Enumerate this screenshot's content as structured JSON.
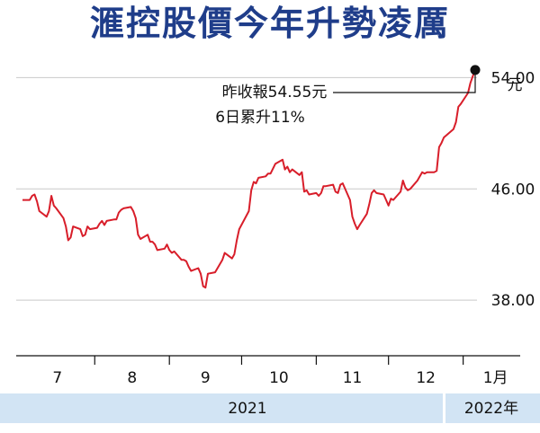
{
  "title": "滙控股價今年升勢凌厲",
  "chart_data": {
    "type": "line",
    "unit": "元",
    "ylim": [
      34,
      57
    ],
    "yticks": [
      "54.00",
      "46.00",
      "38.00"
    ],
    "ytick_values": [
      54,
      46,
      38
    ],
    "grid": true,
    "month_labels": [
      "7",
      "8",
      "9",
      "10",
      "11",
      "12",
      "1月"
    ],
    "year_labels": [
      "2021",
      "2022年"
    ],
    "annotation_lines": [
      "昨收報54.55元",
      "6日累升11%"
    ],
    "series": [
      {
        "color": "#d81e2a",
        "points": [
          [
            "2021-07-02",
            45.2
          ],
          [
            "2021-07-05",
            45.2
          ],
          [
            "2021-07-06",
            45.5
          ],
          [
            "2021-07-07",
            45.6
          ],
          [
            "2021-07-08",
            45.1
          ],
          [
            "2021-07-09",
            44.4
          ],
          [
            "2021-07-12",
            44.0
          ],
          [
            "2021-07-13",
            44.4
          ],
          [
            "2021-07-14",
            45.5
          ],
          [
            "2021-07-15",
            44.8
          ],
          [
            "2021-07-16",
            44.6
          ],
          [
            "2021-07-19",
            43.9
          ],
          [
            "2021-07-20",
            43.3
          ],
          [
            "2021-07-21",
            42.3
          ],
          [
            "2021-07-22",
            42.5
          ],
          [
            "2021-07-23",
            43.3
          ],
          [
            "2021-07-26",
            43.1
          ],
          [
            "2021-07-27",
            42.6
          ],
          [
            "2021-07-28",
            42.7
          ],
          [
            "2021-07-29",
            43.3
          ],
          [
            "2021-07-30",
            43.1
          ],
          [
            "2021-08-02",
            43.2
          ],
          [
            "2021-08-03",
            43.5
          ],
          [
            "2021-08-04",
            43.7
          ],
          [
            "2021-08-05",
            43.4
          ],
          [
            "2021-08-06",
            43.7
          ],
          [
            "2021-08-09",
            43.8
          ],
          [
            "2021-08-10",
            43.8
          ],
          [
            "2021-08-11",
            44.3
          ],
          [
            "2021-08-12",
            44.5
          ],
          [
            "2021-08-13",
            44.6
          ],
          [
            "2021-08-16",
            44.7
          ],
          [
            "2021-08-17",
            44.4
          ],
          [
            "2021-08-18",
            43.9
          ],
          [
            "2021-08-19",
            42.7
          ],
          [
            "2021-08-20",
            42.4
          ],
          [
            "2021-08-23",
            42.7
          ],
          [
            "2021-08-24",
            42.2
          ],
          [
            "2021-08-25",
            42.2
          ],
          [
            "2021-08-26",
            42.0
          ],
          [
            "2021-08-27",
            41.6
          ],
          [
            "2021-08-30",
            41.7
          ],
          [
            "2021-08-31",
            42.0
          ],
          [
            "2021-09-01",
            41.6
          ],
          [
            "2021-09-02",
            41.4
          ],
          [
            "2021-09-03",
            41.5
          ],
          [
            "2021-09-06",
            40.9
          ],
          [
            "2021-09-07",
            40.9
          ],
          [
            "2021-09-08",
            40.8
          ],
          [
            "2021-09-09",
            40.4
          ],
          [
            "2021-09-10",
            40.1
          ],
          [
            "2021-09-13",
            40.3
          ],
          [
            "2021-09-14",
            39.9
          ],
          [
            "2021-09-15",
            39.0
          ],
          [
            "2021-09-16",
            38.9
          ],
          [
            "2021-09-17",
            39.9
          ],
          [
            "2021-09-20",
            40.0
          ],
          [
            "2021-09-21",
            40.3
          ],
          [
            "2021-09-23",
            40.9
          ],
          [
            "2021-09-24",
            41.4
          ],
          [
            "2021-09-27",
            41.0
          ],
          [
            "2021-09-28",
            41.3
          ],
          [
            "2021-09-29",
            42.3
          ],
          [
            "2021-09-30",
            43.1
          ],
          [
            "2021-10-04",
            44.4
          ],
          [
            "2021-10-05",
            45.9
          ],
          [
            "2021-10-06",
            46.5
          ],
          [
            "2021-10-07",
            46.4
          ],
          [
            "2021-10-08",
            46.8
          ],
          [
            "2021-10-11",
            46.9
          ],
          [
            "2021-10-12",
            47.1
          ],
          [
            "2021-10-13",
            47.1
          ],
          [
            "2021-10-15",
            47.8
          ],
          [
            "2021-10-18",
            48.1
          ],
          [
            "2021-10-19",
            47.4
          ],
          [
            "2021-10-20",
            47.6
          ],
          [
            "2021-10-21",
            47.2
          ],
          [
            "2021-10-22",
            47.4
          ],
          [
            "2021-10-25",
            47.0
          ],
          [
            "2021-10-26",
            47.2
          ],
          [
            "2021-10-27",
            45.8
          ],
          [
            "2021-10-28",
            45.9
          ],
          [
            "2021-10-29",
            45.6
          ],
          [
            "2021-11-01",
            45.7
          ],
          [
            "2021-11-02",
            45.5
          ],
          [
            "2021-11-03",
            45.7
          ],
          [
            "2021-11-04",
            46.2
          ],
          [
            "2021-11-05",
            46.2
          ],
          [
            "2021-11-08",
            46.3
          ],
          [
            "2021-11-09",
            45.8
          ],
          [
            "2021-11-10",
            45.7
          ],
          [
            "2021-11-11",
            46.3
          ],
          [
            "2021-11-12",
            46.4
          ],
          [
            "2021-11-15",
            45.2
          ],
          [
            "2021-11-16",
            44.0
          ],
          [
            "2021-11-17",
            43.5
          ],
          [
            "2021-11-18",
            43.1
          ],
          [
            "2021-11-19",
            43.4
          ],
          [
            "2021-11-22",
            44.2
          ],
          [
            "2021-11-23",
            44.9
          ],
          [
            "2021-11-24",
            45.7
          ],
          [
            "2021-11-25",
            45.9
          ],
          [
            "2021-11-26",
            45.7
          ],
          [
            "2021-11-29",
            45.6
          ],
          [
            "2021-11-30",
            45.2
          ],
          [
            "2021-12-01",
            44.8
          ],
          [
            "2021-12-02",
            45.3
          ],
          [
            "2021-12-03",
            45.2
          ],
          [
            "2021-12-06",
            45.8
          ],
          [
            "2021-12-07",
            46.6
          ],
          [
            "2021-12-08",
            46.1
          ],
          [
            "2021-12-09",
            45.9
          ],
          [
            "2021-12-10",
            46.0
          ],
          [
            "2021-12-13",
            46.6
          ],
          [
            "2021-12-14",
            46.9
          ],
          [
            "2021-12-15",
            47.2
          ],
          [
            "2021-12-16",
            47.1
          ],
          [
            "2021-12-17",
            47.2
          ],
          [
            "2021-12-20",
            47.2
          ],
          [
            "2021-12-21",
            47.3
          ],
          [
            "2021-12-22",
            49.0
          ],
          [
            "2021-12-23",
            49.3
          ],
          [
            "2021-12-24",
            49.7
          ],
          [
            "2021-12-28",
            50.3
          ],
          [
            "2021-12-29",
            50.8
          ],
          [
            "2021-12-30",
            51.9
          ],
          [
            "2021-12-31",
            52.1
          ],
          [
            "2022-01-03",
            52.9
          ],
          [
            "2022-01-04",
            53.6
          ],
          [
            "2022-01-05",
            54.1
          ],
          [
            "2022-01-06",
            54.55
          ]
        ]
      }
    ]
  }
}
